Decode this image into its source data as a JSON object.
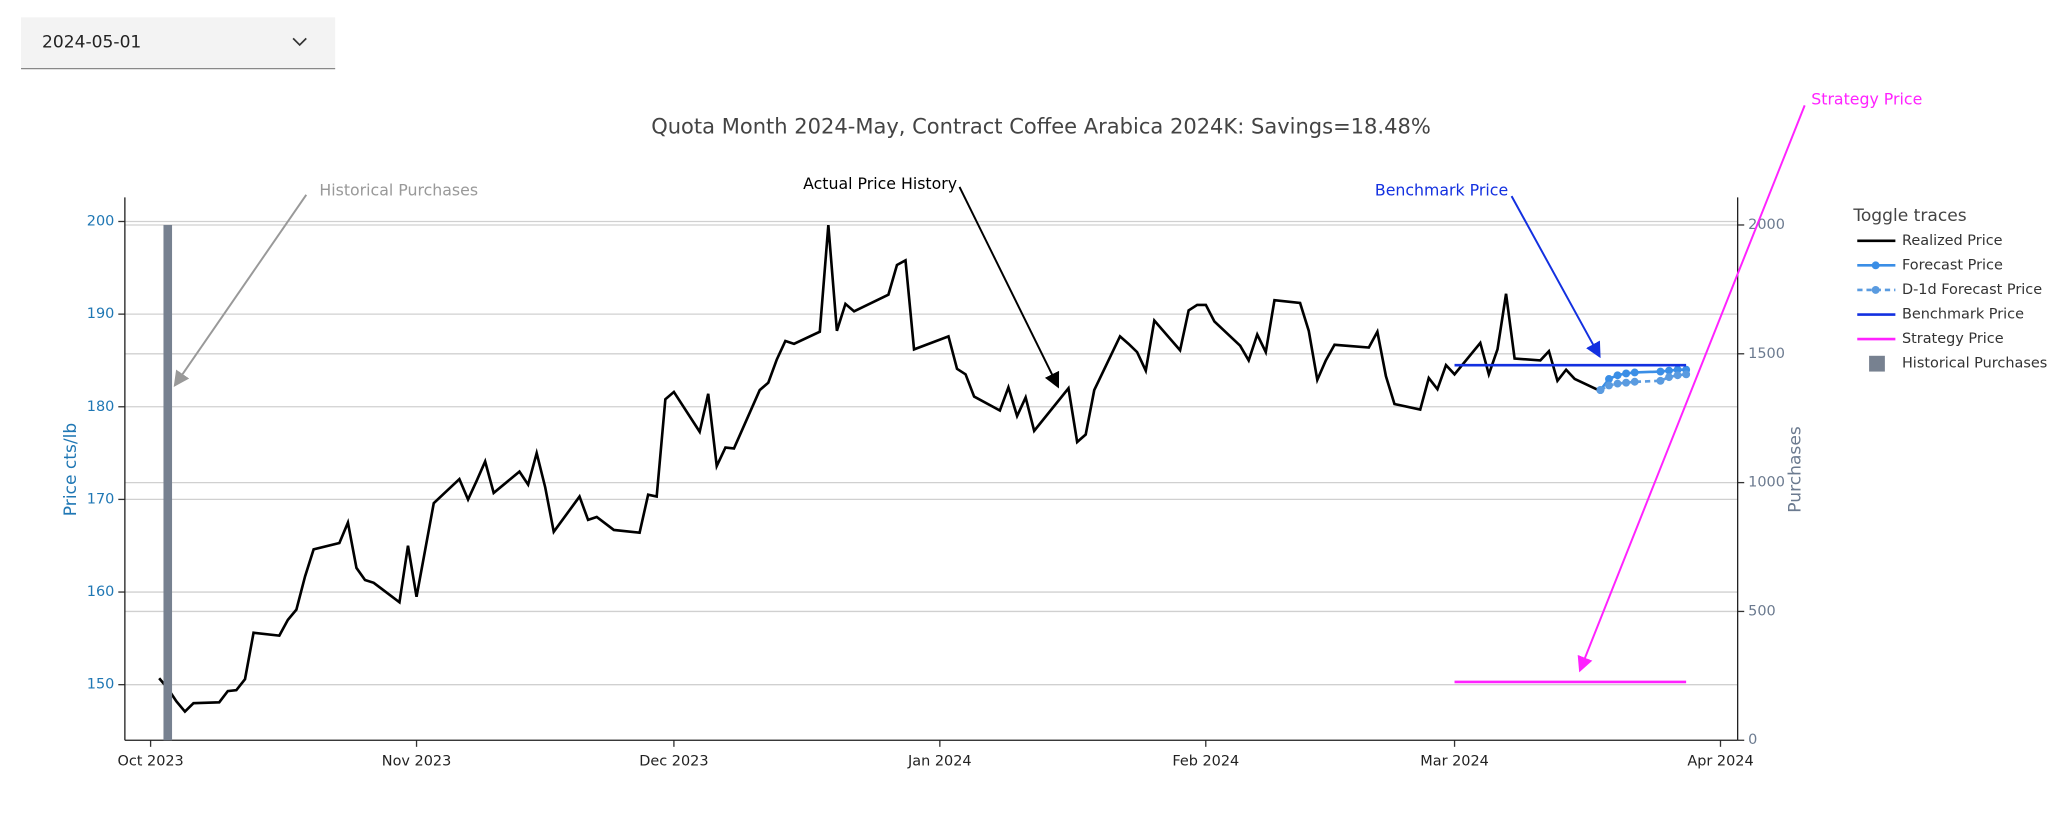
{
  "dropdown": {
    "value": "2024-05-01"
  },
  "chart_data": {
    "type": "line",
    "title": "Quota Month 2024-May, Contract Coffee Arabica 2024K:  Savings=18.48%",
    "y_label": "Price cts/lb",
    "y2_label": "Purchases",
    "legend_title": "Toggle traces",
    "grid": true,
    "xlim": [
      "2023-09-28",
      "2024-04-03"
    ],
    "xticks": [
      {
        "value": "2023-10-01",
        "label": "Oct 2023"
      },
      {
        "value": "2023-11-01",
        "label": "Nov 2023"
      },
      {
        "value": "2023-12-01",
        "label": "Dec 2023"
      },
      {
        "value": "2024-01-01",
        "label": "Jan 2024"
      },
      {
        "value": "2024-02-01",
        "label": "Feb 2024"
      },
      {
        "value": "2024-03-01",
        "label": "Mar 2024"
      },
      {
        "value": "2024-04-01",
        "label": "Apr 2024"
      }
    ],
    "ylim": [
      144,
      202.6
    ],
    "yticks": [
      150,
      160,
      170,
      180,
      190,
      200
    ],
    "y2lim": [
      0,
      2107
    ],
    "y2ticks": [
      0,
      500,
      1000,
      1500,
      2000
    ],
    "annotations": [
      {
        "text": "Historical Purchases",
        "color": "#999999"
      },
      {
        "text": "Actual Price History",
        "color": "#000000"
      },
      {
        "text": "Benchmark Price",
        "color": "#1330e0"
      },
      {
        "text": "Strategy Price",
        "color": "#ff22ff"
      }
    ],
    "series": [
      {
        "name": "Realized Price",
        "color": "#000000",
        "x": [
          "2023-10-02",
          "2023-10-03",
          "2023-10-04",
          "2023-10-05",
          "2023-10-06",
          "2023-10-09",
          "2023-10-10",
          "2023-10-11",
          "2023-10-12",
          "2023-10-13",
          "2023-10-16",
          "2023-10-17",
          "2023-10-18",
          "2023-10-19",
          "2023-10-20",
          "2023-10-23",
          "2023-10-24",
          "2023-10-25",
          "2023-10-26",
          "2023-10-27",
          "2023-10-30",
          "2023-10-31",
          "2023-11-01",
          "2023-11-02",
          "2023-11-03",
          "2023-11-06",
          "2023-11-07",
          "2023-11-08",
          "2023-11-09",
          "2023-11-10",
          "2023-11-13",
          "2023-11-14",
          "2023-11-15",
          "2023-11-16",
          "2023-11-17",
          "2023-11-20",
          "2023-11-21",
          "2023-11-22",
          "2023-11-24",
          "2023-11-27",
          "2023-11-28",
          "2023-11-29",
          "2023-11-30",
          "2023-12-01",
          "2023-12-04",
          "2023-12-05",
          "2023-12-06",
          "2023-12-07",
          "2023-12-08",
          "2023-12-11",
          "2023-12-12",
          "2023-12-13",
          "2023-12-14",
          "2023-12-15",
          "2023-12-18",
          "2023-12-19",
          "2023-12-20",
          "2023-12-21",
          "2023-12-22",
          "2023-12-26",
          "2023-12-27",
          "2023-12-28",
          "2023-12-29",
          "2024-01-02",
          "2024-01-03",
          "2024-01-04",
          "2024-01-05",
          "2024-01-08",
          "2024-01-09",
          "2024-01-10",
          "2024-01-11",
          "2024-01-12",
          "2024-01-16",
          "2024-01-17",
          "2024-01-18",
          "2024-01-19",
          "2024-01-22",
          "2024-01-23",
          "2024-01-24",
          "2024-01-25",
          "2024-01-26",
          "2024-01-29",
          "2024-01-30",
          "2024-01-31",
          "2024-02-01",
          "2024-02-02",
          "2024-02-05",
          "2024-02-06",
          "2024-02-07",
          "2024-02-08",
          "2024-02-09",
          "2024-02-12",
          "2024-02-13",
          "2024-02-14",
          "2024-02-15",
          "2024-02-16",
          "2024-02-20",
          "2024-02-21",
          "2024-02-22",
          "2024-02-23",
          "2024-02-26",
          "2024-02-27",
          "2024-02-28",
          "2024-02-29",
          "2024-03-01",
          "2024-03-04",
          "2024-03-05",
          "2024-03-06",
          "2024-03-07",
          "2024-03-08",
          "2024-03-11",
          "2024-03-12",
          "2024-03-13",
          "2024-03-14",
          "2024-03-15",
          "2024-03-18"
        ],
        "values": [
          150.7,
          149.6,
          148.2,
          147.1,
          148.0,
          148.1,
          149.3,
          149.4,
          150.6,
          155.6,
          155.3,
          157.0,
          158.1,
          161.7,
          164.6,
          165.3,
          167.5,
          162.6,
          161.3,
          161.0,
          158.9,
          165.0,
          159.5,
          164.5,
          169.6,
          172.2,
          170.0,
          172.0,
          174.1,
          170.7,
          173.0,
          171.6,
          175.0,
          171.3,
          166.5,
          170.3,
          167.8,
          168.1,
          166.7,
          166.4,
          170.5,
          170.3,
          180.8,
          181.6,
          177.3,
          181.4,
          173.6,
          175.6,
          175.5,
          181.8,
          182.6,
          185.1,
          187.1,
          186.8,
          188.1,
          199.6,
          188.2,
          191.1,
          190.3,
          192.1,
          195.3,
          195.8,
          186.2,
          187.6,
          184.1,
          183.5,
          181.1,
          179.6,
          182.1,
          179.0,
          181.0,
          177.4,
          182.0,
          176.2,
          177.0,
          181.8,
          187.6,
          186.8,
          185.9,
          183.9,
          189.3,
          186.1,
          190.4,
          191.0,
          191.0,
          189.2,
          186.6,
          185.0,
          187.8,
          185.9,
          191.5,
          191.2,
          188.2,
          182.9,
          185.0,
          186.7,
          186.4,
          188.1,
          183.3,
          180.3,
          179.7,
          183.1,
          181.9,
          184.5,
          183.5,
          186.9,
          183.5,
          186.2,
          192.2,
          185.2,
          185.0,
          186.0,
          182.8,
          184.0,
          183.0,
          181.7
        ]
      },
      {
        "name": "Forecast Price",
        "color": "#3a8ee6",
        "markers": true,
        "x": [
          "2024-03-18",
          "2024-03-19",
          "2024-03-20",
          "2024-03-21",
          "2024-03-22",
          "2024-03-25",
          "2024-03-26",
          "2024-03-27",
          "2024-03-28"
        ],
        "values": [
          181.8,
          183.0,
          183.4,
          183.6,
          183.7,
          183.8,
          183.9,
          184.0,
          184.0
        ]
      },
      {
        "name": "D-1d Forecast Price",
        "color": "#5a9be0",
        "markers": true,
        "dash": true,
        "x": [
          "2024-03-18",
          "2024-03-19",
          "2024-03-20",
          "2024-03-21",
          "2024-03-22",
          "2024-03-25",
          "2024-03-26",
          "2024-03-27",
          "2024-03-28"
        ],
        "values": [
          181.8,
          182.3,
          182.5,
          182.6,
          182.7,
          182.8,
          183.2,
          183.4,
          183.5
        ]
      },
      {
        "name": "Benchmark Price",
        "color": "#1330e0",
        "x": [
          "2024-03-01",
          "2024-03-28"
        ],
        "values": [
          184.5,
          184.5
        ]
      },
      {
        "name": "Strategy Price",
        "color": "#ff22ff",
        "x": [
          "2024-03-01",
          "2024-03-28"
        ],
        "values": [
          150.3,
          150.3
        ]
      },
      {
        "name": "Historical Purchases",
        "color": "#778190",
        "type": "bar",
        "axis": "y2",
        "x": [
          "2023-10-03"
        ],
        "values": [
          2000
        ]
      }
    ]
  }
}
